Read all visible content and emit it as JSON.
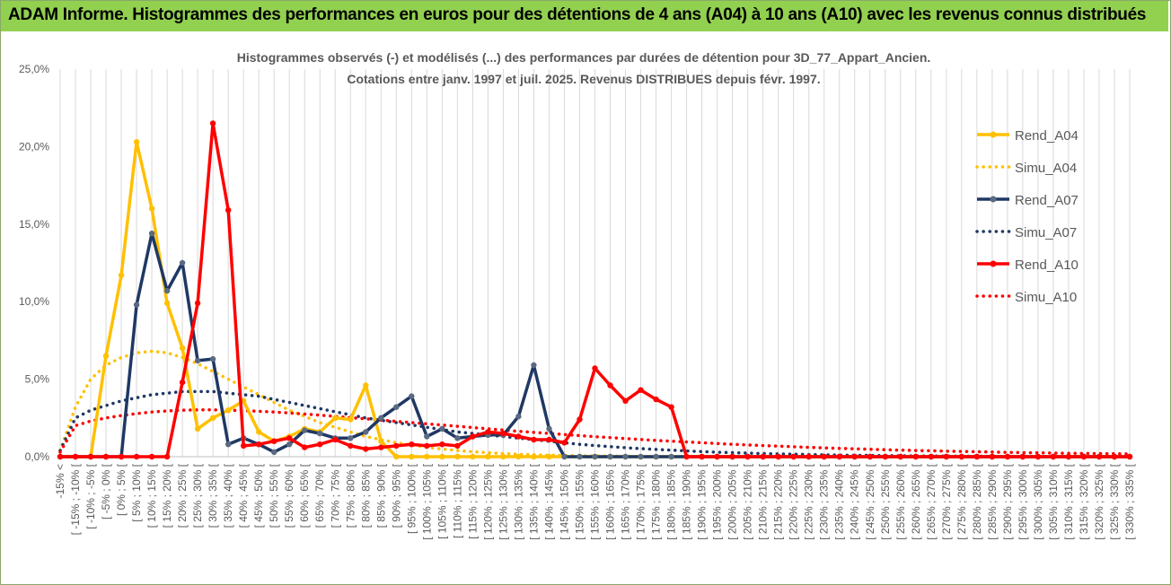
{
  "header": {
    "title": "ADAM Informe. Histogrammes des performances en euros pour des détentions de 4 ans (A04) à 10 ans (A10) avec les revenus connus distribués"
  },
  "colors": {
    "header_bg": "#92d050",
    "grid": "#d9d9d9",
    "A04": "#ffc000",
    "A07": "#1f3864",
    "A10": "#ff0000"
  },
  "chart_data": {
    "type": "line",
    "title": "Histogrammes observés (-)  et modélisés (...) des performances par durées de détention pour 3D_77_Appart_Ancien.",
    "subtitle": "Cotations entre janv. 1997 et juil. 2025. Revenus DISTRIBUES depuis févr. 1997.",
    "xlabel": "",
    "ylabel": "",
    "ylim": [
      0,
      25
    ],
    "y_ticks": [
      "0,0%",
      "5,0%",
      "10,0%",
      "15,0%",
      "20,0%",
      "25,0%"
    ],
    "grid": "vertical",
    "legend_position": "right",
    "categories": [
      "-15% <",
      "[ -15% ; -10% [",
      "[ -10% ; -5% [",
      "[ -5% ; 0% [",
      "[ 0% ; 5% [",
      "[ 5% ; 10% [",
      "[ 10% ; 15% [",
      "[ 15% ; 20% [",
      "[ 20% ; 25% [",
      "[ 25% ; 30% [",
      "[ 30% ; 35% [",
      "[ 35% ; 40% [",
      "[ 40% ; 45% [",
      "[ 45% ; 50% [",
      "[ 50% ; 55% [",
      "[ 55% ; 60% [",
      "[ 60% ; 65% [",
      "[ 65% ; 70% [",
      "[ 70% ; 75% [",
      "[ 75% ; 80% [",
      "[ 80% ; 85% [",
      "[ 85% ; 90% [",
      "[ 90% ; 95% [",
      "[ 95% ; 100% [",
      "[ 100% ; 105% [",
      "[ 105% ; 110% [",
      "[ 110% ; 115% [",
      "[ 115% ; 120% [",
      "[ 120% ; 125% [",
      "[ 125% ; 130% [",
      "[ 130% ; 135% [",
      "[ 135% ; 140% [",
      "[ 140% ; 145% [",
      "[ 145% ; 150% [",
      "[ 150% ; 155% [",
      "[ 155% ; 160% [",
      "[ 160% ; 165% [",
      "[ 165% ; 170% [",
      "[ 170% ; 175% [",
      "[ 175% ; 180% [",
      "[ 180% ; 185% [",
      "[ 185% ; 190% [",
      "[ 190% ; 195% [",
      "[ 195% ; 200% [",
      "[ 200% ; 205% [",
      "[ 205% ; 210% [",
      "[ 210% ; 215% [",
      "[ 215% ; 220% [",
      "[ 220% ; 225% [",
      "[ 225% ; 230% [",
      "[ 230% ; 235% [",
      "[ 235% ; 240% [",
      "[ 240% ; 245% [",
      "[ 245% ; 250% [",
      "[ 250% ; 255% [",
      "[ 255% ; 260% [",
      "[ 260% ; 265% [",
      "[ 265% ; 270% [",
      "[ 270% ; 275% [",
      "[ 275% ; 280% [",
      "[ 280% ; 285% [",
      "[ 285% ; 290% [",
      "[ 290% ; 295% [",
      "[ 295% ; 300% [",
      "[ 300% ; 305% [",
      "[ 305% ; 310% [",
      "[ 310% ; 315% [",
      "[ 315% ; 320% [",
      "[ 320% ; 325% [",
      "[ 325% ; 330% [",
      "[ 330% ; 335% ["
    ],
    "series": [
      {
        "name": "Rend_A04",
        "style": "solid",
        "markers": true,
        "color": "#ffc000",
        "values": [
          0,
          0,
          0,
          6.5,
          11.7,
          20.3,
          16.0,
          9.9,
          7.0,
          1.8,
          2.5,
          3.0,
          3.6,
          1.6,
          1.0,
          1.3,
          1.8,
          1.6,
          2.5,
          2.4,
          4.6,
          1.0,
          0,
          0,
          0,
          0,
          0,
          0,
          0,
          0,
          0,
          0,
          0,
          0,
          0,
          0,
          0,
          0,
          0,
          0,
          0,
          0,
          0,
          0,
          0,
          0,
          0,
          0,
          0,
          0,
          0,
          0,
          0,
          0,
          0,
          0,
          0,
          0,
          0,
          0,
          0,
          0,
          0,
          0,
          0,
          0,
          0,
          0,
          0,
          0,
          0
        ]
      },
      {
        "name": "Simu_A04",
        "style": "dotted",
        "markers": false,
        "color": "#ffc000",
        "values": [
          0.4,
          3.2,
          5.0,
          5.9,
          6.4,
          6.7,
          6.8,
          6.7,
          6.4,
          6.0,
          5.5,
          5.0,
          4.5,
          4.0,
          3.5,
          3.0,
          2.6,
          2.2,
          1.9,
          1.6,
          1.3,
          1.1,
          0.9,
          0.75,
          0.6,
          0.5,
          0.4,
          0.32,
          0.26,
          0.2,
          0.16,
          0.12,
          0.1,
          0.08,
          0.06,
          0.05,
          0.04,
          0.03,
          0.02,
          0.02,
          0.01,
          0.01,
          0.01,
          0,
          0,
          0,
          0,
          0,
          0,
          0,
          0,
          0,
          0,
          0,
          0,
          0,
          0,
          0,
          0,
          0,
          0,
          0,
          0,
          0,
          0,
          0,
          0,
          0,
          0,
          0,
          0
        ]
      },
      {
        "name": "Rend_A07",
        "style": "solid",
        "markers": true,
        "color": "#1f3864",
        "values": [
          0,
          0,
          0,
          0,
          0,
          9.8,
          14.4,
          10.7,
          12.5,
          6.2,
          6.3,
          0.8,
          1.2,
          0.8,
          0.3,
          0.8,
          1.7,
          1.5,
          1.2,
          1.2,
          1.6,
          2.5,
          3.2,
          3.9,
          1.3,
          1.8,
          1.2,
          1.3,
          1.4,
          1.4,
          2.6,
          5.9,
          1.8,
          0,
          0,
          0,
          0,
          0,
          0,
          0,
          0,
          0,
          0,
          0,
          0,
          0,
          0,
          0,
          0,
          0,
          0,
          0,
          0,
          0,
          0,
          0,
          0,
          0,
          0,
          0,
          0,
          0,
          0,
          0,
          0,
          0,
          0,
          0,
          0,
          0,
          0
        ]
      },
      {
        "name": "Simu_A07",
        "style": "dotted",
        "markers": false,
        "color": "#1f3864",
        "values": [
          0.4,
          2.5,
          3.0,
          3.3,
          3.6,
          3.8,
          4.0,
          4.1,
          4.2,
          4.2,
          4.2,
          4.1,
          4.0,
          3.9,
          3.7,
          3.5,
          3.3,
          3.1,
          2.9,
          2.7,
          2.5,
          2.35,
          2.2,
          2.05,
          1.9,
          1.75,
          1.6,
          1.5,
          1.4,
          1.3,
          1.2,
          1.1,
          1.0,
          0.9,
          0.8,
          0.72,
          0.65,
          0.58,
          0.52,
          0.47,
          0.42,
          0.37,
          0.33,
          0.29,
          0.26,
          0.23,
          0.2,
          0.18,
          0.16,
          0.14,
          0.12,
          0.1,
          0.09,
          0.08,
          0.07,
          0.06,
          0.05,
          0.04,
          0.04,
          0.03,
          0.03,
          0.02,
          0.02,
          0.02,
          0.01,
          0.01,
          0.01,
          0.01,
          0.01,
          0.01,
          0.01
        ]
      },
      {
        "name": "Rend_A10",
        "style": "solid",
        "markers": true,
        "color": "#ff0000",
        "values": [
          0,
          0,
          0,
          0,
          0,
          0,
          0,
          0,
          4.8,
          9.9,
          21.5,
          15.9,
          0.7,
          0.8,
          1.0,
          1.2,
          0.6,
          0.8,
          1.1,
          0.7,
          0.5,
          0.6,
          0.7,
          0.8,
          0.7,
          0.8,
          0.7,
          1.3,
          1.6,
          1.5,
          1.3,
          1.1,
          1.1,
          0.9,
          2.4,
          5.7,
          4.6,
          3.6,
          4.3,
          3.7,
          3.2,
          0,
          0,
          0,
          0,
          0,
          0,
          0,
          0,
          0,
          0,
          0,
          0,
          0,
          0,
          0,
          0,
          0,
          0,
          0,
          0,
          0,
          0,
          0,
          0,
          0,
          0,
          0,
          0,
          0,
          0
        ]
      },
      {
        "name": "Simu_A10",
        "style": "dotted",
        "markers": false,
        "color": "#ff0000",
        "values": [
          0.3,
          2.0,
          2.3,
          2.5,
          2.65,
          2.78,
          2.88,
          2.95,
          3.0,
          3.02,
          3.02,
          3.0,
          2.97,
          2.93,
          2.88,
          2.82,
          2.75,
          2.68,
          2.6,
          2.52,
          2.44,
          2.36,
          2.28,
          2.2,
          2.12,
          2.04,
          1.96,
          1.88,
          1.8,
          1.72,
          1.64,
          1.57,
          1.5,
          1.43,
          1.36,
          1.29,
          1.23,
          1.17,
          1.11,
          1.05,
          1.0,
          0.95,
          0.9,
          0.85,
          0.8,
          0.76,
          0.72,
          0.68,
          0.64,
          0.6,
          0.57,
          0.54,
          0.51,
          0.48,
          0.45,
          0.42,
          0.4,
          0.38,
          0.36,
          0.34,
          0.32,
          0.3,
          0.28,
          0.26,
          0.25,
          0.24,
          0.22,
          0.21,
          0.2,
          0.19,
          0.18
        ]
      }
    ]
  }
}
